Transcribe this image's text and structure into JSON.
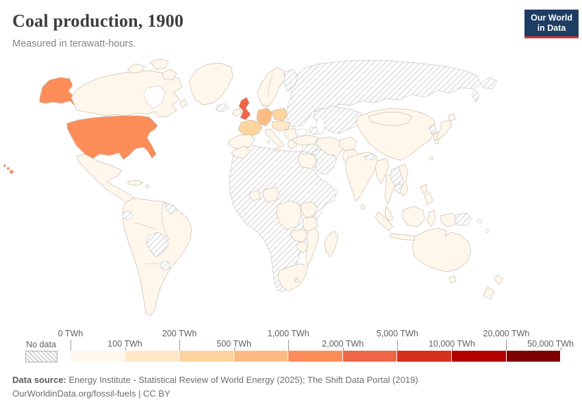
{
  "header": {
    "title": "Coal production, 1900",
    "subtitle": "Measured in terawatt-hours.",
    "logo_line1": "Our World",
    "logo_line2": "in Data",
    "logo_bg": "#1d3d63",
    "logo_accent": "#d7352c"
  },
  "legend": {
    "no_data_label": "No data",
    "unit": "TWh",
    "bin_colors": [
      "#fff7ec",
      "#fee8c8",
      "#fdd49e",
      "#fdbb84",
      "#fc8d59",
      "#ef6548",
      "#d7301f",
      "#b30000",
      "#7f0000"
    ],
    "ticks": [
      {
        "label": "0 TWh",
        "row": "top"
      },
      {
        "label": "100 TWh",
        "row": "bottom"
      },
      {
        "label": "200 TWh",
        "row": "top"
      },
      {
        "label": "500 TWh",
        "row": "bottom"
      },
      {
        "label": "1,000 TWh",
        "row": "top"
      },
      {
        "label": "2,000 TWh",
        "row": "bottom"
      },
      {
        "label": "5,000 TWh",
        "row": "top"
      },
      {
        "label": "10,000 TWh",
        "row": "bottom"
      },
      {
        "label": "20,000 TWh",
        "row": "top"
      },
      {
        "label": "50,000 TWh",
        "row": "bottom"
      }
    ]
  },
  "footer": {
    "source_prefix": "Data source:",
    "source_text": " Energy Institute - Statistical Review of World Energy (2025); The Shift Data Portal (2019)",
    "license_line": "OurWorldinData.org/fossil-fuels | CC BY"
  },
  "chart_data": {
    "type": "choropleth-map",
    "title": "Coal production, 1900",
    "unit": "TWh",
    "bin_edges": [
      0,
      100,
      200,
      500,
      1000,
      2000,
      5000,
      10000,
      20000,
      50000
    ],
    "legend_position": "bottom",
    "notable_values": [
      {
        "country": "United Kingdom",
        "bin": "2,000-5,000 TWh"
      },
      {
        "country": "United States",
        "bin": "1,000-2,000 TWh"
      },
      {
        "country": "Germany",
        "bin": "500-1,000 TWh"
      },
      {
        "country": "Belgium",
        "bin": "500-1,000 TWh"
      },
      {
        "country": "France",
        "bin": "200-500 TWh"
      },
      {
        "country": "Poland",
        "bin": "200-500 TWh"
      },
      {
        "country": "Austria-Hungary region",
        "bin": "100-200 TWh"
      },
      {
        "country": "Most other colored countries",
        "bin": "0-100 TWh"
      },
      {
        "country": "Russia, Central Asia, much of Africa, Middle East and others",
        "bin": "No data"
      }
    ]
  },
  "map": {
    "country_bins": {
      "united-states": 5,
      "hawaii": 5,
      "united-kingdom": 6,
      "germany": 4,
      "belgium-netherlands": 4,
      "france": 3,
      "poland": 3,
      "austria-hungary": 2,
      "canada": 1,
      "canada-arctic-1": 1,
      "canada-arctic-2": 1,
      "canada-arctic-3": 1,
      "newfoundland": 1,
      "greenland": 1,
      "mexico-central-america": 1,
      "cuba": 1,
      "hispaniola": 1,
      "south-america": 1,
      "ireland": 1,
      "iberia": 1,
      "norway-sweden": 1,
      "denmark": 1,
      "italy": 1,
      "sicily": 1,
      "sardinia": 1,
      "balkans": 1,
      "greece": 1,
      "morocco": 1,
      "egypt": 1,
      "nigeria": 1,
      "ghana": 1,
      "dr-congo": 1,
      "kenya-uganda": 1,
      "tanzania": 1,
      "zambia": 1,
      "zimbabwe": 1,
      "mozambique": 1,
      "south-africa": 1,
      "madagascar": 1,
      "turkey": 1,
      "iran": 1,
      "afghanistan": 1,
      "pakistan": 1,
      "india": 1,
      "sri-lanka": 1,
      "china": 1,
      "mongolia": 1,
      "south-korea": 1,
      "japan-hokkaido": 1,
      "japan-honshu": 1,
      "japan-kyushu": 1,
      "taiwan": 1,
      "myanmar": 1,
      "thailand": 1,
      "vietnam": 1,
      "malay-peninsula": 1,
      "sumatra": 1,
      "java": 1,
      "borneo": 1,
      "sulawesi": 1,
      "philippines-north": 1,
      "philippines-south": 1,
      "new-guinea-west": 1,
      "australia": 1,
      "tasmania": 1,
      "new-zealand-north": 1,
      "new-zealand-south": 1,
      "russia": "no-data",
      "russia-far-east": "no-data",
      "kamchatka": "no-data",
      "finland": "no-data",
      "iceland": "no-data",
      "kazakhstan-central-asia": "no-data",
      "caucasus": "no-data",
      "syria-iraq": "no-data",
      "saudi-arabia": "no-data",
      "africa-no-data-regions": "no-data",
      "lesotho": "no-data",
      "ecuador": "no-data",
      "guyanas": "no-data",
      "bolivia-paraguay": "no-data",
      "uruguay": "no-data",
      "laos": "no-data",
      "cambodia": "no-data",
      "nepal": "no-data",
      "bangladesh": "no-data",
      "north-korea": "no-data",
      "papua-new-guinea": "no-data",
      "pacific-island-1": "no-data",
      "pacific-island-2": "no-data"
    }
  }
}
